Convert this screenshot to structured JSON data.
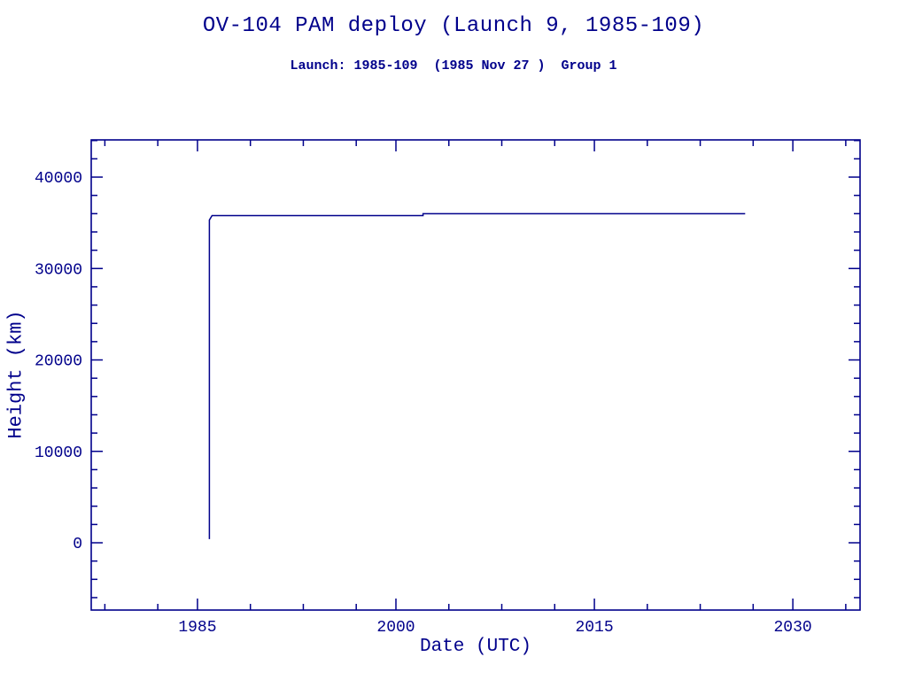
{
  "chart_data": {
    "type": "line",
    "title": "OV-104 PAM deploy (Launch 9, 1985-109)",
    "subtitle": "Launch: 1985-109  (1985 Nov 27 )  Group 1",
    "xlabel": "Date (UTC)",
    "ylabel": "Height (km)",
    "xlim": [
      1976.97,
      2035.08
    ],
    "ylim": [
      -7360,
      44070
    ],
    "x_major_ticks": [
      1985,
      2000,
      2015,
      2030
    ],
    "x_minor_ticks": [
      1978,
      1982,
      1989,
      1993,
      1997,
      2004,
      2008,
      2012,
      2019,
      2023,
      2027,
      2034
    ],
    "y_major_ticks": [
      0,
      10000,
      20000,
      30000,
      40000
    ],
    "y_minor_step": 2000,
    "grid": false,
    "legend": false,
    "colors": {
      "ink": "#00008B",
      "background": "#FFFFFF"
    },
    "series": [
      {
        "name": "satellite-height-km",
        "color": "#00008B",
        "points": [
          [
            1985.9,
            400
          ],
          [
            1985.9,
            35300
          ],
          [
            1986.1,
            35786
          ],
          [
            2002.05,
            35786
          ],
          [
            2002.05,
            35990
          ],
          [
            2026.4,
            35990
          ]
        ]
      }
    ]
  }
}
